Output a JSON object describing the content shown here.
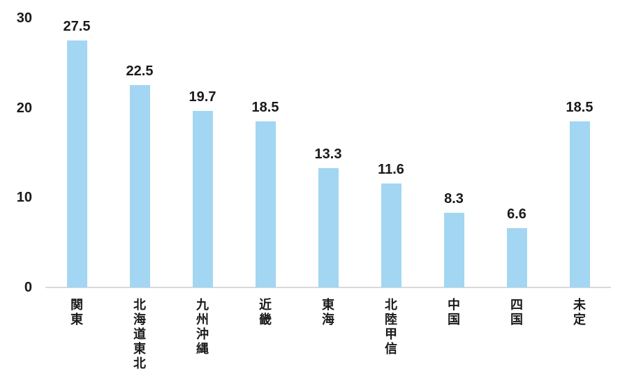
{
  "chart_data": {
    "type": "bar",
    "title": "",
    "xlabel": "",
    "ylabel": "",
    "categories": [
      "関東",
      "北海道東北",
      "九州沖縄",
      "近畿",
      "東海",
      "北陸甲信",
      "中国",
      "四国",
      "未定"
    ],
    "values": [
      27.5,
      22.5,
      19.7,
      18.5,
      13.3,
      11.6,
      8.3,
      6.6,
      18.5
    ],
    "data_labels": [
      "27.5",
      "22.5",
      "19.7",
      "18.5",
      "13.3",
      "11.6",
      "8.3",
      "6.6",
      "18.5"
    ],
    "ylim": [
      0,
      30
    ],
    "yticks": [
      0,
      10,
      20,
      30
    ],
    "grid": false,
    "legend": null,
    "bar_color": "#a3d6f2",
    "axis_line_color": "#d9d9d9",
    "text_color": "#1a1a1a"
  }
}
